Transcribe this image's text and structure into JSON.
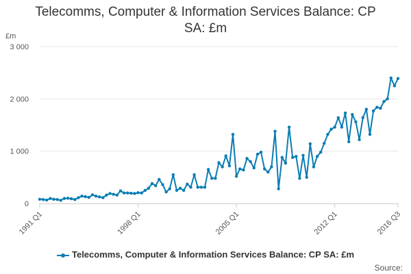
{
  "chart_data": {
    "type": "line",
    "title_lines": [
      "Telecomms, Computer & Information Services Balance: CP",
      "SA: £m"
    ],
    "y_unit": "£m",
    "ylim": [
      0,
      3000
    ],
    "y_ticks": [
      0,
      1000,
      2000,
      3000
    ],
    "y_tick_labels": [
      "0",
      "1 000",
      "2 000",
      "3 000"
    ],
    "x_tick_labels": [
      "1991 Q1",
      "1998 Q1",
      "2005 Q1",
      "2012 Q1",
      "2016 Q3"
    ],
    "x_tick_index": [
      0,
      28,
      56,
      84,
      102
    ],
    "grid": true,
    "legend": "bottom",
    "series": [
      {
        "name": "Telecomms, Computer & Information Services Balance: CP SA: £m",
        "color": "#0a7cb3",
        "values": [
          80,
          75,
          65,
          95,
          80,
          75,
          60,
          95,
          100,
          90,
          75,
          110,
          140,
          130,
          115,
          165,
          140,
          125,
          110,
          160,
          190,
          175,
          160,
          240,
          200,
          200,
          195,
          190,
          205,
          200,
          250,
          290,
          380,
          340,
          460,
          360,
          220,
          280,
          550,
          250,
          290,
          250,
          370,
          310,
          550,
          310,
          310,
          310,
          650,
          480,
          480,
          780,
          700,
          910,
          720,
          1320,
          520,
          660,
          640,
          860,
          800,
          680,
          940,
          980,
          660,
          600,
          700,
          1380,
          280,
          880,
          770,
          1460,
          880,
          900,
          480,
          920,
          500,
          1140,
          700,
          900,
          980,
          1150,
          1320,
          1420,
          1460,
          1640,
          1460,
          1730,
          1180,
          1700,
          1560,
          1220,
          1640,
          1800,
          1320,
          1770,
          1840,
          1820,
          1950,
          2000,
          2400,
          2250,
          2390
        ]
      }
    ]
  },
  "source_label": "Source:"
}
